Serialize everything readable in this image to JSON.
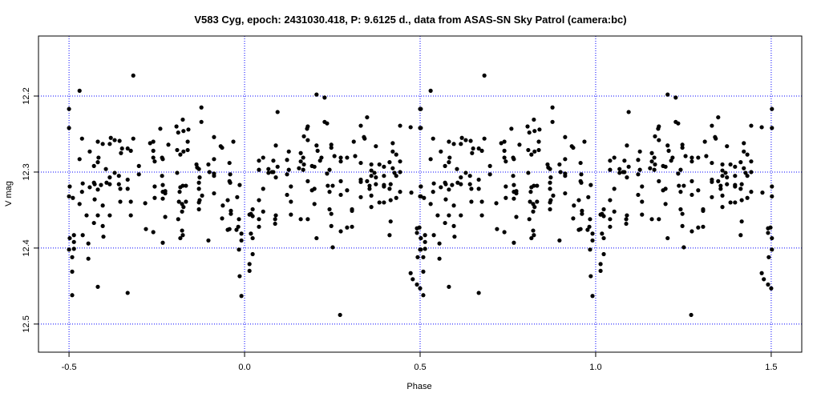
{
  "chart_data": {
    "type": "scatter",
    "title": "V583 Cyg, epoch: 2431030.418, P: 9.6125 d., data from ASAS-SN Sky Patrol (camera:bc)",
    "xlabel": "Phase",
    "ylabel": "V mag",
    "xlim": [
      -0.587,
      1.587
    ],
    "ylim": [
      12.537,
      12.121
    ],
    "y_inverted": true,
    "xticks": [
      -0.5,
      0.0,
      0.5,
      1.0,
      1.5
    ],
    "xtick_labels": [
      "-0.5",
      "0.0",
      "0.5",
      "1.0",
      "1.5"
    ],
    "yticks": [
      12.2,
      12.3,
      12.4,
      12.5
    ],
    "ytick_labels": [
      "12.2",
      "12.3",
      "12.4",
      "12.5"
    ],
    "grid": true,
    "grid_color": "#0000ff",
    "point_color": "#000000",
    "phase_repeat_offset": 1,
    "points": [
      [
        -0.317,
        12.173
      ],
      [
        -0.47,
        12.193
      ],
      [
        -0.5,
        12.217
      ],
      [
        -0.5,
        12.242
      ],
      [
        -0.463,
        12.256
      ],
      [
        -0.418,
        12.26
      ],
      [
        -0.404,
        12.263
      ],
      [
        -0.384,
        12.263
      ],
      [
        -0.381,
        12.255
      ],
      [
        -0.37,
        12.258
      ],
      [
        -0.356,
        12.259
      ],
      [
        -0.317,
        12.256
      ],
      [
        -0.441,
        12.273
      ],
      [
        -0.416,
        12.281
      ],
      [
        -0.418,
        12.287
      ],
      [
        -0.429,
        12.292
      ],
      [
        -0.47,
        12.283
      ],
      [
        -0.349,
        12.269
      ],
      [
        -0.352,
        12.275
      ],
      [
        -0.333,
        12.269
      ],
      [
        -0.324,
        12.272
      ],
      [
        -0.395,
        12.296
      ],
      [
        -0.301,
        12.292
      ],
      [
        -0.301,
        12.303
      ],
      [
        -0.37,
        12.301
      ],
      [
        -0.358,
        12.305
      ],
      [
        -0.384,
        12.307
      ],
      [
        -0.393,
        12.314
      ],
      [
        -0.384,
        12.316
      ],
      [
        -0.429,
        12.314
      ],
      [
        -0.427,
        12.316
      ],
      [
        -0.461,
        12.315
      ],
      [
        -0.498,
        12.319
      ],
      [
        -0.441,
        12.32
      ],
      [
        -0.409,
        12.317
      ],
      [
        -0.418,
        12.323
      ],
      [
        -0.358,
        12.316
      ],
      [
        -0.354,
        12.322
      ],
      [
        -0.333,
        12.31
      ],
      [
        -0.333,
        12.322
      ],
      [
        -0.463,
        12.326
      ],
      [
        -0.5,
        12.332
      ],
      [
        -0.489,
        12.334
      ],
      [
        -0.47,
        12.342
      ],
      [
        -0.427,
        12.336
      ],
      [
        -0.404,
        12.344
      ],
      [
        -0.354,
        12.339
      ],
      [
        -0.324,
        12.339
      ],
      [
        -0.283,
        12.341
      ],
      [
        -0.45,
        12.357
      ],
      [
        -0.418,
        12.357
      ],
      [
        -0.384,
        12.357
      ],
      [
        -0.324,
        12.357
      ],
      [
        -0.429,
        12.367
      ],
      [
        -0.404,
        12.371
      ],
      [
        -0.281,
        12.375
      ],
      [
        -0.26,
        12.379
      ],
      [
        -0.486,
        12.383
      ],
      [
        -0.461,
        12.383
      ],
      [
        -0.402,
        12.385
      ],
      [
        -0.498,
        12.387
      ],
      [
        -0.486,
        12.392
      ],
      [
        -0.445,
        12.394
      ],
      [
        -0.5,
        12.402
      ],
      [
        -0.486,
        12.401
      ],
      [
        -0.491,
        12.412
      ],
      [
        -0.445,
        12.414
      ],
      [
        -0.491,
        12.431
      ],
      [
        -0.418,
        12.451
      ],
      [
        -0.333,
        12.459
      ],
      [
        -0.491,
        12.462
      ],
      [
        -0.26,
        12.26
      ],
      [
        -0.269,
        12.262
      ],
      [
        -0.26,
        12.272
      ],
      [
        -0.26,
        12.281
      ],
      [
        -0.256,
        12.286
      ],
      [
        -0.256,
        12.319
      ],
      [
        -0.256,
        12.334
      ],
      [
        -0.123,
        12.215
      ],
      [
        -0.123,
        12.234
      ],
      [
        -0.176,
        12.231
      ],
      [
        -0.194,
        12.24
      ],
      [
        -0.189,
        12.248
      ],
      [
        -0.174,
        12.246
      ],
      [
        -0.16,
        12.244
      ],
      [
        -0.24,
        12.243
      ],
      [
        -0.217,
        12.264
      ],
      [
        -0.162,
        12.26
      ],
      [
        -0.162,
        12.271
      ],
      [
        -0.174,
        12.273
      ],
      [
        -0.192,
        12.271
      ],
      [
        -0.183,
        12.277
      ],
      [
        -0.235,
        12.281
      ],
      [
        -0.233,
        12.283
      ],
      [
        -0.087,
        12.254
      ],
      [
        -0.068,
        12.266
      ],
      [
        -0.064,
        12.268
      ],
      [
        -0.032,
        12.26
      ],
      [
        -0.087,
        12.283
      ],
      [
        -0.103,
        12.29
      ],
      [
        -0.137,
        12.29
      ],
      [
        -0.135,
        12.294
      ],
      [
        -0.13,
        12.296
      ],
      [
        -0.043,
        12.288
      ],
      [
        -0.192,
        12.301
      ],
      [
        -0.1,
        12.3
      ],
      [
        -0.087,
        12.302
      ],
      [
        -0.087,
        12.305
      ],
      [
        -0.041,
        12.303
      ],
      [
        -0.235,
        12.305
      ],
      [
        -0.128,
        12.307
      ],
      [
        -0.13,
        12.314
      ],
      [
        -0.043,
        12.312
      ],
      [
        -0.041,
        12.314
      ],
      [
        -0.233,
        12.317
      ],
      [
        -0.014,
        12.317
      ],
      [
        -0.233,
        12.326
      ],
      [
        -0.226,
        12.325
      ],
      [
        -0.226,
        12.328
      ],
      [
        -0.183,
        12.32
      ],
      [
        -0.176,
        12.318
      ],
      [
        -0.167,
        12.318
      ],
      [
        -0.185,
        12.326
      ],
      [
        -0.13,
        12.322
      ],
      [
        -0.121,
        12.331
      ],
      [
        -0.087,
        12.328
      ],
      [
        -0.021,
        12.333
      ],
      [
        -0.233,
        12.335
      ],
      [
        -0.187,
        12.339
      ],
      [
        -0.178,
        12.342
      ],
      [
        -0.167,
        12.339
      ],
      [
        -0.174,
        12.346
      ],
      [
        -0.128,
        12.337
      ],
      [
        -0.13,
        12.34
      ],
      [
        -0.13,
        12.349
      ],
      [
        -0.178,
        12.352
      ],
      [
        -0.062,
        12.344
      ],
      [
        -0.048,
        12.337
      ],
      [
        -0.039,
        12.351
      ],
      [
        -0.039,
        12.355
      ],
      [
        -0.226,
        12.359
      ],
      [
        -0.189,
        12.362
      ],
      [
        -0.064,
        12.361
      ],
      [
        -0.016,
        12.362
      ],
      [
        -0.018,
        12.372
      ],
      [
        -0.023,
        12.376
      ],
      [
        -0.048,
        12.376
      ],
      [
        -0.043,
        12.375
      ],
      [
        -0.178,
        12.377
      ],
      [
        -0.176,
        12.383
      ],
      [
        -0.183,
        12.387
      ],
      [
        -0.233,
        12.393
      ],
      [
        -0.103,
        12.39
      ],
      [
        -0.009,
        12.381
      ],
      [
        -0.009,
        12.39
      ],
      [
        -0.016,
        12.402
      ],
      [
        -0.014,
        12.437
      ],
      [
        -0.009,
        12.463
      ],
      [
        0.014,
        12.356
      ],
      [
        0.018,
        12.355
      ],
      [
        0.205,
        12.198
      ],
      [
        0.228,
        12.202
      ],
      [
        0.094,
        12.221
      ],
      [
        0.228,
        12.234
      ],
      [
        0.235,
        12.236
      ],
      [
        0.18,
        12.24
      ],
      [
        0.178,
        12.243
      ],
      [
        0.169,
        12.253
      ],
      [
        0.18,
        12.258
      ],
      [
        0.089,
        12.265
      ],
      [
        0.205,
        12.265
      ],
      [
        0.247,
        12.264
      ],
      [
        0.247,
        12.268
      ],
      [
        0.208,
        12.272
      ],
      [
        0.126,
        12.273
      ],
      [
        0.16,
        12.275
      ],
      [
        0.256,
        12.279
      ],
      [
        0.053,
        12.281
      ],
      [
        0.041,
        12.285
      ],
      [
        0.082,
        12.285
      ],
      [
        0.167,
        12.281
      ],
      [
        0.16,
        12.286
      ],
      [
        0.219,
        12.281
      ],
      [
        0.215,
        12.285
      ],
      [
        0.121,
        12.284
      ],
      [
        0.169,
        12.29
      ],
      [
        0.094,
        12.293
      ],
      [
        0.192,
        12.292
      ],
      [
        0.199,
        12.293
      ],
      [
        0.041,
        12.297
      ],
      [
        0.068,
        12.296
      ],
      [
        0.126,
        12.297
      ],
      [
        0.155,
        12.295
      ],
      [
        0.167,
        12.297
      ],
      [
        0.242,
        12.297
      ],
      [
        0.068,
        12.301
      ],
      [
        0.078,
        12.3
      ],
      [
        0.082,
        12.3
      ],
      [
        0.121,
        12.303
      ],
      [
        0.235,
        12.302
      ],
      [
        0.089,
        12.307
      ],
      [
        0.18,
        12.312
      ],
      [
        0.237,
        12.318
      ],
      [
        0.251,
        12.318
      ],
      [
        0.053,
        12.322
      ],
      [
        0.132,
        12.319
      ],
      [
        0.199,
        12.322
      ],
      [
        0.192,
        12.324
      ],
      [
        0.242,
        12.326
      ],
      [
        0.121,
        12.33
      ],
      [
        0.041,
        12.337
      ],
      [
        0.132,
        12.339
      ],
      [
        0.199,
        12.342
      ],
      [
        0.023,
        12.349
      ],
      [
        0.053,
        12.352
      ],
      [
        0.242,
        12.349
      ],
      [
        0.247,
        12.355
      ],
      [
        0.023,
        12.358
      ],
      [
        0.089,
        12.357
      ],
      [
        0.132,
        12.356
      ],
      [
        0.087,
        12.362
      ],
      [
        0.041,
        12.362
      ],
      [
        0.16,
        12.362
      ],
      [
        0.18,
        12.362
      ],
      [
        0.087,
        12.368
      ],
      [
        0.041,
        12.372
      ],
      [
        0.247,
        12.371
      ],
      [
        0.018,
        12.381
      ],
      [
        0.023,
        12.387
      ],
      [
        0.205,
        12.387
      ],
      [
        0.251,
        12.399
      ],
      [
        0.023,
        12.408
      ],
      [
        0.014,
        12.421
      ],
      [
        0.014,
        12.43
      ],
      [
        0.349,
        12.228
      ],
      [
        0.331,
        12.239
      ],
      [
        0.443,
        12.239
      ],
      [
        0.473,
        12.241
      ],
      [
        0.502,
        12.242
      ],
      [
        0.502,
        12.217
      ],
      [
        0.34,
        12.254
      ],
      [
        0.342,
        12.256
      ],
      [
        0.311,
        12.26
      ],
      [
        0.374,
        12.266
      ],
      [
        0.422,
        12.262
      ],
      [
        0.422,
        12.273
      ],
      [
        0.432,
        12.277
      ],
      [
        0.274,
        12.281
      ],
      [
        0.292,
        12.281
      ],
      [
        0.315,
        12.279
      ],
      [
        0.274,
        12.286
      ],
      [
        0.331,
        12.288
      ],
      [
        0.361,
        12.29
      ],
      [
        0.384,
        12.29
      ],
      [
        0.397,
        12.293
      ],
      [
        0.413,
        12.287
      ],
      [
        0.422,
        12.295
      ],
      [
        0.443,
        12.286
      ],
      [
        0.361,
        12.298
      ],
      [
        0.443,
        12.3
      ],
      [
        0.37,
        12.301
      ],
      [
        0.427,
        12.301
      ],
      [
        0.432,
        12.305
      ],
      [
        0.361,
        12.305
      ],
      [
        0.374,
        12.307
      ],
      [
        0.397,
        12.305
      ],
      [
        0.331,
        12.31
      ],
      [
        0.331,
        12.313
      ],
      [
        0.349,
        12.312
      ],
      [
        0.274,
        12.312
      ],
      [
        0.356,
        12.318
      ],
      [
        0.356,
        12.322
      ],
      [
        0.374,
        12.316
      ],
      [
        0.397,
        12.317
      ],
      [
        0.397,
        12.319
      ],
      [
        0.416,
        12.316
      ],
      [
        0.413,
        12.322
      ],
      [
        0.274,
        12.33
      ],
      [
        0.292,
        12.324
      ],
      [
        0.361,
        12.331
      ],
      [
        0.443,
        12.326
      ],
      [
        0.475,
        12.327
      ],
      [
        0.502,
        12.319
      ],
      [
        0.502,
        12.332
      ],
      [
        0.331,
        12.333
      ],
      [
        0.432,
        12.334
      ],
      [
        0.416,
        12.337
      ],
      [
        0.384,
        12.34
      ],
      [
        0.397,
        12.34
      ],
      [
        0.361,
        12.346
      ],
      [
        0.306,
        12.349
      ],
      [
        0.306,
        12.351
      ],
      [
        0.274,
        12.378
      ],
      [
        0.292,
        12.373
      ],
      [
        0.306,
        12.372
      ],
      [
        0.416,
        12.365
      ],
      [
        0.413,
        12.383
      ],
      [
        0.491,
        12.374
      ],
      [
        0.498,
        12.373
      ],
      [
        0.491,
        12.38
      ],
      [
        0.502,
        12.387
      ],
      [
        0.502,
        12.402
      ],
      [
        0.493,
        12.412
      ],
      [
        0.473,
        12.433
      ],
      [
        0.479,
        12.441
      ],
      [
        0.491,
        12.448
      ],
      [
        0.5,
        12.453
      ],
      [
        0.272,
        12.488
      ]
    ]
  }
}
